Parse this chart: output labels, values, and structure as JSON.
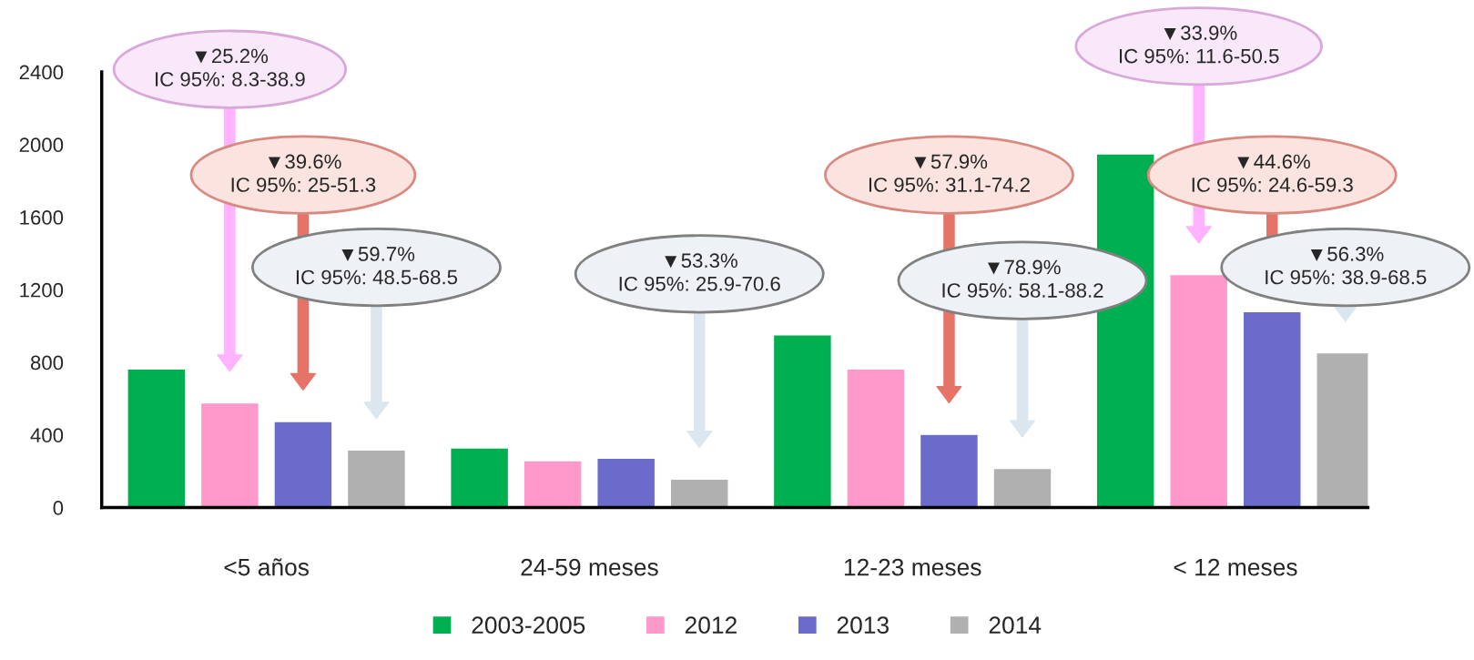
{
  "chart_data": {
    "type": "bar",
    "categories": [
      "<5 años",
      "24-59 meses",
      "12-23 meses",
      "< 12 meses"
    ],
    "series": [
      {
        "name": "2003-2005",
        "color": "#00b050",
        "values": [
          763,
          329,
          951,
          1949
        ]
      },
      {
        "name": "2012",
        "color": "#ff99cc",
        "values": [
          577,
          258,
          763,
          1284
        ]
      },
      {
        "name": "2013",
        "color": "#6b6bcc",
        "values": [
          474,
          272,
          403,
          1080
        ]
      },
      {
        "name": "2014",
        "color": "#b0b0b0",
        "values": [
          317,
          157,
          215,
          852
        ]
      }
    ],
    "ylim": [
      0,
      2400
    ],
    "yticks": [
      0,
      400,
      800,
      1200,
      1600,
      2000,
      2400
    ],
    "grid": false,
    "legend": "bottom",
    "annotations": [
      "▼25.2%\nIC 95%: 8.3-38.9",
      "▼39.6%\nIC 95%: 25-51.3",
      "▼59.7%\nIC 95%: 48.5-68.5",
      "▼53.3%\nIC 95%: 25.9-70.6",
      "▼57.9%\nIC 95%: 31.1-74.2",
      "▼78.9%\nIC 95%: 58.1-88.2",
      "▼33.9%\nIC 95%: 11.6-50.5",
      "▼44.6%\nIC 95%: 24.6-59.3",
      "▼56.3%\nIC 95%: 38.9-68.5"
    ]
  }
}
